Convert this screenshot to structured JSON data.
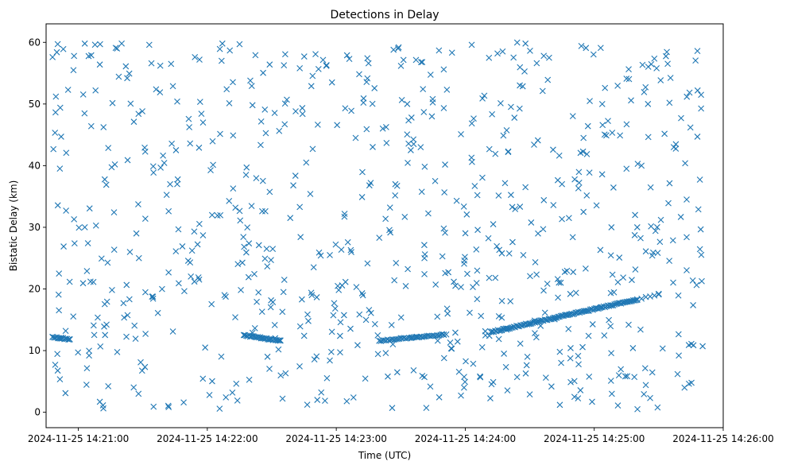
{
  "chart_data": {
    "type": "scatter",
    "title": "Detections in Delay",
    "xlabel": "Time (UTC)",
    "ylabel": "Bistatic Delay (km)",
    "marker": "x",
    "color": "#1f77b4",
    "grid": false,
    "x_unit": "UTC time (HH:MM:SS), all points on 2024-11-25",
    "xlim": [
      "2024-11-25 14:20:45",
      "2024-11-25 14:26:00"
    ],
    "ylim": [
      -2.5,
      63
    ],
    "xticks": [
      "2024-11-25 14:21:00",
      "2024-11-25 14:22:00",
      "2024-11-25 14:23:00",
      "2024-11-25 14:24:00",
      "2024-11-25 14:25:00",
      "2024-11-25 14:26:00"
    ],
    "yticks": [
      0,
      10,
      20,
      30,
      40,
      50,
      60
    ],
    "track_segments": [
      {
        "start": [
          "14:20:48",
          12.2
        ],
        "end": [
          "14:20:56",
          11.8
        ],
        "count": 14
      },
      {
        "start": [
          "14:22:17",
          12.5
        ],
        "end": [
          "14:22:34",
          11.6
        ],
        "count": 30
      },
      {
        "start": [
          "14:23:20",
          11.6
        ],
        "end": [
          "14:23:50",
          12.6
        ],
        "count": 40
      },
      {
        "start": [
          "14:24:12",
          13.0
        ],
        "end": [
          "14:25:20",
          18.3
        ],
        "count": 110
      },
      {
        "start": [
          "14:25:20",
          18.3
        ],
        "end": [
          "14:25:30",
          19.2
        ],
        "count": 6
      }
    ],
    "clutter": {
      "count": 600,
      "x_range": [
        "14:20:48",
        "14:25:52"
      ],
      "y_range": [
        0.5,
        60
      ],
      "distribution": "uniform"
    },
    "series": [
      {
        "values": [
          [
            "14:20:48",
            57.6
          ],
          [
            "14:20:50",
            58.4
          ],
          [
            "14:20:53",
            58.9
          ],
          [
            "14:20:58",
            57.8
          ],
          [
            "14:21:03",
            59.8
          ],
          [
            "14:21:06",
            57.9
          ],
          [
            "14:21:10",
            56.4
          ],
          [
            "14:21:18",
            59.0
          ],
          [
            "14:21:33",
            59.6
          ],
          [
            "14:21:34",
            56.6
          ],
          [
            "14:21:44",
            52.9
          ],
          [
            "14:21:46",
            50.4
          ],
          [
            "14:21:58",
            47.0
          ],
          [
            "14:22:07",
            59.8
          ],
          [
            "14:22:15",
            59.7
          ],
          [
            "14:22:20",
            53.8
          ],
          [
            "14:22:29",
            56.4
          ],
          [
            "14:22:43",
            55.8
          ],
          [
            "14:22:58",
            53.5
          ],
          [
            "14:23:05",
            57.9
          ],
          [
            "14:23:15",
            56.6
          ],
          [
            "14:23:29",
            59.2
          ],
          [
            "14:23:40",
            56.8
          ],
          [
            "14:23:50",
            55.6
          ],
          [
            "14:24:03",
            59.6
          ],
          [
            "14:24:15",
            58.2
          ],
          [
            "14:24:28",
            59.8
          ],
          [
            "14:24:39",
            57.5
          ],
          [
            "14:24:54",
            59.4
          ],
          [
            "14:25:03",
            59.1
          ],
          [
            "14:25:15",
            54.1
          ],
          [
            "14:25:29",
            55.8
          ],
          [
            "14:25:48",
            58.6
          ],
          [
            "14:20:52",
            44.7
          ],
          [
            "14:21:06",
            46.4
          ],
          [
            "14:21:28",
            48.4
          ],
          [
            "14:21:52",
            43.6
          ],
          [
            "14:22:12",
            44.9
          ],
          [
            "14:22:36",
            46.7
          ],
          [
            "14:22:46",
            40.5
          ],
          [
            "14:23:09",
            44.5
          ],
          [
            "14:23:36",
            43.5
          ],
          [
            "14:23:58",
            45.1
          ],
          [
            "14:24:14",
            41.9
          ],
          [
            "14:24:32",
            43.4
          ],
          [
            "14:24:55",
            44.5
          ],
          [
            "14:25:12",
            44.9
          ],
          [
            "14:25:25",
            50.0
          ],
          [
            "14:25:37",
            43.0
          ],
          [
            "14:25:48",
            44.7
          ],
          [
            "14:20:58",
            31.3
          ],
          [
            "14:21:13",
            36.9
          ],
          [
            "14:21:27",
            29.0
          ],
          [
            "14:21:42",
            32.6
          ],
          [
            "14:21:58",
            28.7
          ],
          [
            "14:22:12",
            36.3
          ],
          [
            "14:22:27",
            32.6
          ],
          [
            "14:22:43",
            33.3
          ],
          [
            "14:22:57",
            25.5
          ],
          [
            "14:23:12",
            34.9
          ],
          [
            "14:23:25",
            33.2
          ],
          [
            "14:23:41",
            25.0
          ],
          [
            "14:23:56",
            34.3
          ],
          [
            "14:24:13",
            30.5
          ],
          [
            "14:24:28",
            36.5
          ],
          [
            "14:24:41",
            33.6
          ],
          [
            "14:24:55",
            32.5
          ],
          [
            "14:25:08",
            30.0
          ],
          [
            "14:25:19",
            32.0
          ],
          [
            "14:25:31",
            31.2
          ],
          [
            "14:25:43",
            34.5
          ],
          [
            "14:20:51",
            22.5
          ],
          [
            "14:21:04",
            22.9
          ],
          [
            "14:21:21",
            17.7
          ],
          [
            "14:21:37",
            16.1
          ],
          [
            "14:21:54",
            21.2
          ],
          [
            "14:22:08",
            19.0
          ],
          [
            "14:22:23",
            17.9
          ],
          [
            "14:22:44",
            18.3
          ],
          [
            "14:22:59",
            17.7
          ],
          [
            "14:23:12",
            19.3
          ],
          [
            "14:23:27",
            21.4
          ],
          [
            "14:23:41",
            22.4
          ],
          [
            "14:23:58",
            20.3
          ],
          [
            "14:24:14",
            21.8
          ],
          [
            "14:24:27",
            25.5
          ],
          [
            "14:24:43",
            21.6
          ],
          [
            "14:24:56",
            23.3
          ],
          [
            "14:25:11",
            21.1
          ],
          [
            "14:25:24",
            26.1
          ],
          [
            "14:25:43",
            28.4
          ],
          [
            "14:20:54",
            3.1
          ],
          [
            "14:21:10",
            1.7
          ],
          [
            "14:21:28",
            3.0
          ],
          [
            "14:21:35",
            0.9
          ],
          [
            "14:21:49",
            1.6
          ],
          [
            "14:22:01",
            2.8
          ],
          [
            "14:22:14",
            1.9
          ],
          [
            "14:22:35",
            2.2
          ],
          [
            "14:22:53",
            3.2
          ],
          [
            "14:23:08",
            2.4
          ],
          [
            "14:23:26",
            0.7
          ],
          [
            "14:23:40",
            5.9
          ],
          [
            "14:23:58",
            2.7
          ],
          [
            "14:24:13",
            4.9
          ],
          [
            "14:24:30",
            2.9
          ],
          [
            "14:24:44",
            1.2
          ],
          [
            "14:24:59",
            1.7
          ],
          [
            "14:25:11",
            1.1
          ],
          [
            "14:25:26",
            2.3
          ],
          [
            "14:25:42",
            4.0
          ],
          [
            "14:21:05",
            9.2
          ],
          [
            "14:21:29",
            8.1
          ],
          [
            "14:21:59",
            10.5
          ],
          [
            "14:22:28",
            9.0
          ],
          [
            "14:22:57",
            8.4
          ],
          [
            "14:23:23",
            9.6
          ],
          [
            "14:23:53",
            11.3
          ],
          [
            "14:24:18",
            9.5
          ],
          [
            "14:24:49",
            10.4
          ],
          [
            "14:25:18",
            10.4
          ],
          [
            "14:25:44",
            10.9
          ],
          [
            "14:21:17",
            40.2
          ],
          [
            "14:21:46",
            37.0
          ],
          [
            "14:22:18",
            38.5
          ],
          [
            "14:22:40",
            36.8
          ],
          [
            "14:23:16",
            37.2
          ],
          [
            "14:23:46",
            37.5
          ],
          [
            "14:24:20",
            42.3
          ],
          [
            "14:24:45",
            37.0
          ],
          [
            "14:25:15",
            39.5
          ],
          [
            "14:21:24",
            26.0
          ],
          [
            "14:21:52",
            24.3
          ],
          [
            "14:22:24",
            27.1
          ],
          [
            "14:22:52",
            25.9
          ],
          [
            "14:23:20",
            28.3
          ],
          [
            "14:23:50",
            29.8
          ],
          [
            "14:24:22",
            27.6
          ],
          [
            "14:24:50",
            28.4
          ],
          [
            "14:25:20",
            30.0
          ],
          [
            "14:21:12",
            13.9
          ],
          [
            "14:21:44",
            13.1
          ],
          [
            "14:22:13",
            15.4
          ],
          [
            "14:22:47",
            14.8
          ],
          [
            "14:23:18",
            14.3
          ],
          [
            "14:23:47",
            15.5
          ],
          [
            "14:24:21",
            18.0
          ],
          [
            "14:24:48",
            13.5
          ],
          [
            "14:25:16",
            14.2
          ],
          [
            "14:21:08",
            52.2
          ],
          [
            "14:21:38",
            51.9
          ],
          [
            "14:22:09",
            52.4
          ],
          [
            "14:22:37",
            50.7
          ],
          [
            "14:23:07",
            48.9
          ],
          [
            "14:23:33",
            50.0
          ],
          [
            "14:24:08",
            50.9
          ],
          [
            "14:24:36",
            52.1
          ],
          [
            "14:25:05",
            52.6
          ],
          [
            "14:25:35",
            50.2
          ]
        ]
      },
      {
        "values": [
          [
            "14:20:48",
            12.2
          ],
          [
            "14:20:52",
            12.1
          ],
          [
            "14:20:56",
            11.8
          ],
          [
            "14:22:17",
            12.5
          ],
          [
            "14:22:25",
            12.0
          ],
          [
            "14:22:34",
            11.6
          ],
          [
            "14:23:20",
            11.6
          ],
          [
            "14:23:35",
            12.1
          ],
          [
            "14:23:50",
            12.6
          ],
          [
            "14:24:12",
            13.0
          ],
          [
            "14:24:30",
            14.4
          ],
          [
            "14:24:47",
            15.8
          ],
          [
            "14:25:03",
            17.0
          ],
          [
            "14:25:20",
            18.3
          ],
          [
            "14:25:30",
            19.2
          ]
        ]
      }
    ]
  }
}
